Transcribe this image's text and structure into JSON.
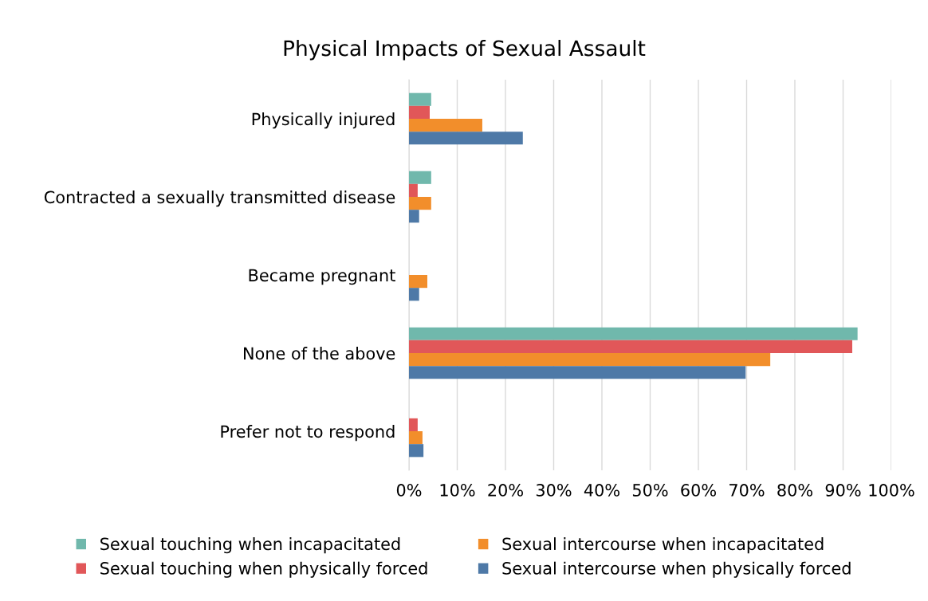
{
  "chart_data": {
    "type": "bar",
    "orientation": "horizontal",
    "title": "Physical Impacts of Sexual Assault",
    "categories": [
      "Physically injured",
      "Contracted a sexually transmitted disease",
      "Became pregnant",
      "None of the above",
      "Prefer not to respond"
    ],
    "series": [
      {
        "name": "Sexual touching when incapacitated",
        "color": "#70b8ac",
        "values": [
          4.6,
          4.6,
          null,
          93,
          null
        ]
      },
      {
        "name": "Sexual touching when physically forced",
        "color": "#e15759",
        "values": [
          4.3,
          1.8,
          null,
          91.9,
          1.8
        ]
      },
      {
        "name": "Sexual intercourse when incapacitated",
        "color": "#f28e2b",
        "values": [
          15.2,
          4.6,
          3.8,
          74.9,
          2.8
        ]
      },
      {
        "name": "Sexual intercourse when physically forced",
        "color": "#4e79a7",
        "values": [
          23.6,
          2.1,
          2.1,
          69.8,
          3.0
        ]
      }
    ],
    "xlim": [
      0,
      100
    ],
    "xticks": [
      {
        "value": 0,
        "label": "0%"
      },
      {
        "value": 10,
        "label": "10%"
      },
      {
        "value": 20,
        "label": "20%"
      },
      {
        "value": 30,
        "label": "30%"
      },
      {
        "value": 40,
        "label": "40%"
      },
      {
        "value": 50,
        "label": "50%"
      },
      {
        "value": 60,
        "label": "60%"
      },
      {
        "value": 70,
        "label": "70%"
      },
      {
        "value": 80,
        "label": "80%"
      },
      {
        "value": 90,
        "label": "90%"
      },
      {
        "value": 100,
        "label": "100%"
      }
    ],
    "grid": "x",
    "legend": "bottom"
  }
}
